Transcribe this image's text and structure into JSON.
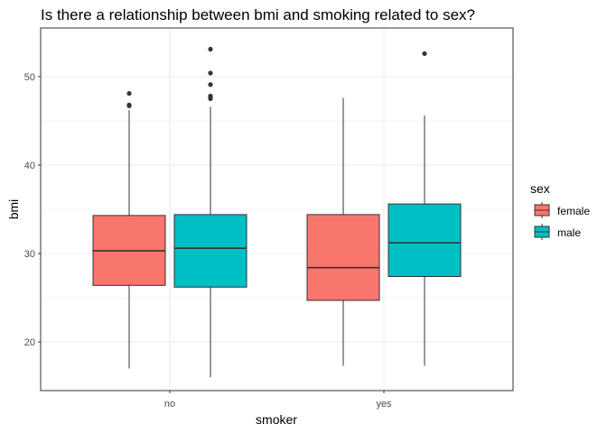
{
  "chart_data": {
    "type": "boxplot",
    "title": "Is there a relationship between bmi and smoking related to sex?",
    "xlabel": "smoker",
    "ylabel": "bmi",
    "categories": [
      "no",
      "yes"
    ],
    "ylim": [
      14.5,
      55.5
    ],
    "yticks": [
      20,
      30,
      40,
      50
    ],
    "grid": true,
    "legend": {
      "title": "sex",
      "position": "right",
      "entries": [
        {
          "name": "female",
          "color": "#F8766D"
        },
        {
          "name": "male",
          "color": "#00BFC4"
        }
      ]
    },
    "series": [
      {
        "name": "female",
        "color": "#F8766D",
        "boxes": [
          {
            "category": "no",
            "min": 17.0,
            "q1": 26.4,
            "median": 30.3,
            "q3": 34.3,
            "max": 46.2,
            "outliers": [
              46.7,
              46.8,
              48.1
            ]
          },
          {
            "category": "yes",
            "min": 17.3,
            "q1": 24.7,
            "median": 28.4,
            "q3": 34.4,
            "max": 47.6,
            "outliers": []
          }
        ]
      },
      {
        "name": "male",
        "color": "#00BFC4",
        "boxes": [
          {
            "category": "no",
            "min": 16.0,
            "q1": 26.2,
            "median": 30.6,
            "q3": 34.4,
            "max": 46.6,
            "outliers": [
              47.5,
              47.7,
              47.8,
              49.1,
              50.4,
              53.1
            ]
          },
          {
            "category": "yes",
            "min": 17.3,
            "q1": 27.4,
            "median": 31.2,
            "q3": 35.6,
            "max": 45.6,
            "outliers": [
              52.6
            ]
          }
        ]
      }
    ]
  }
}
